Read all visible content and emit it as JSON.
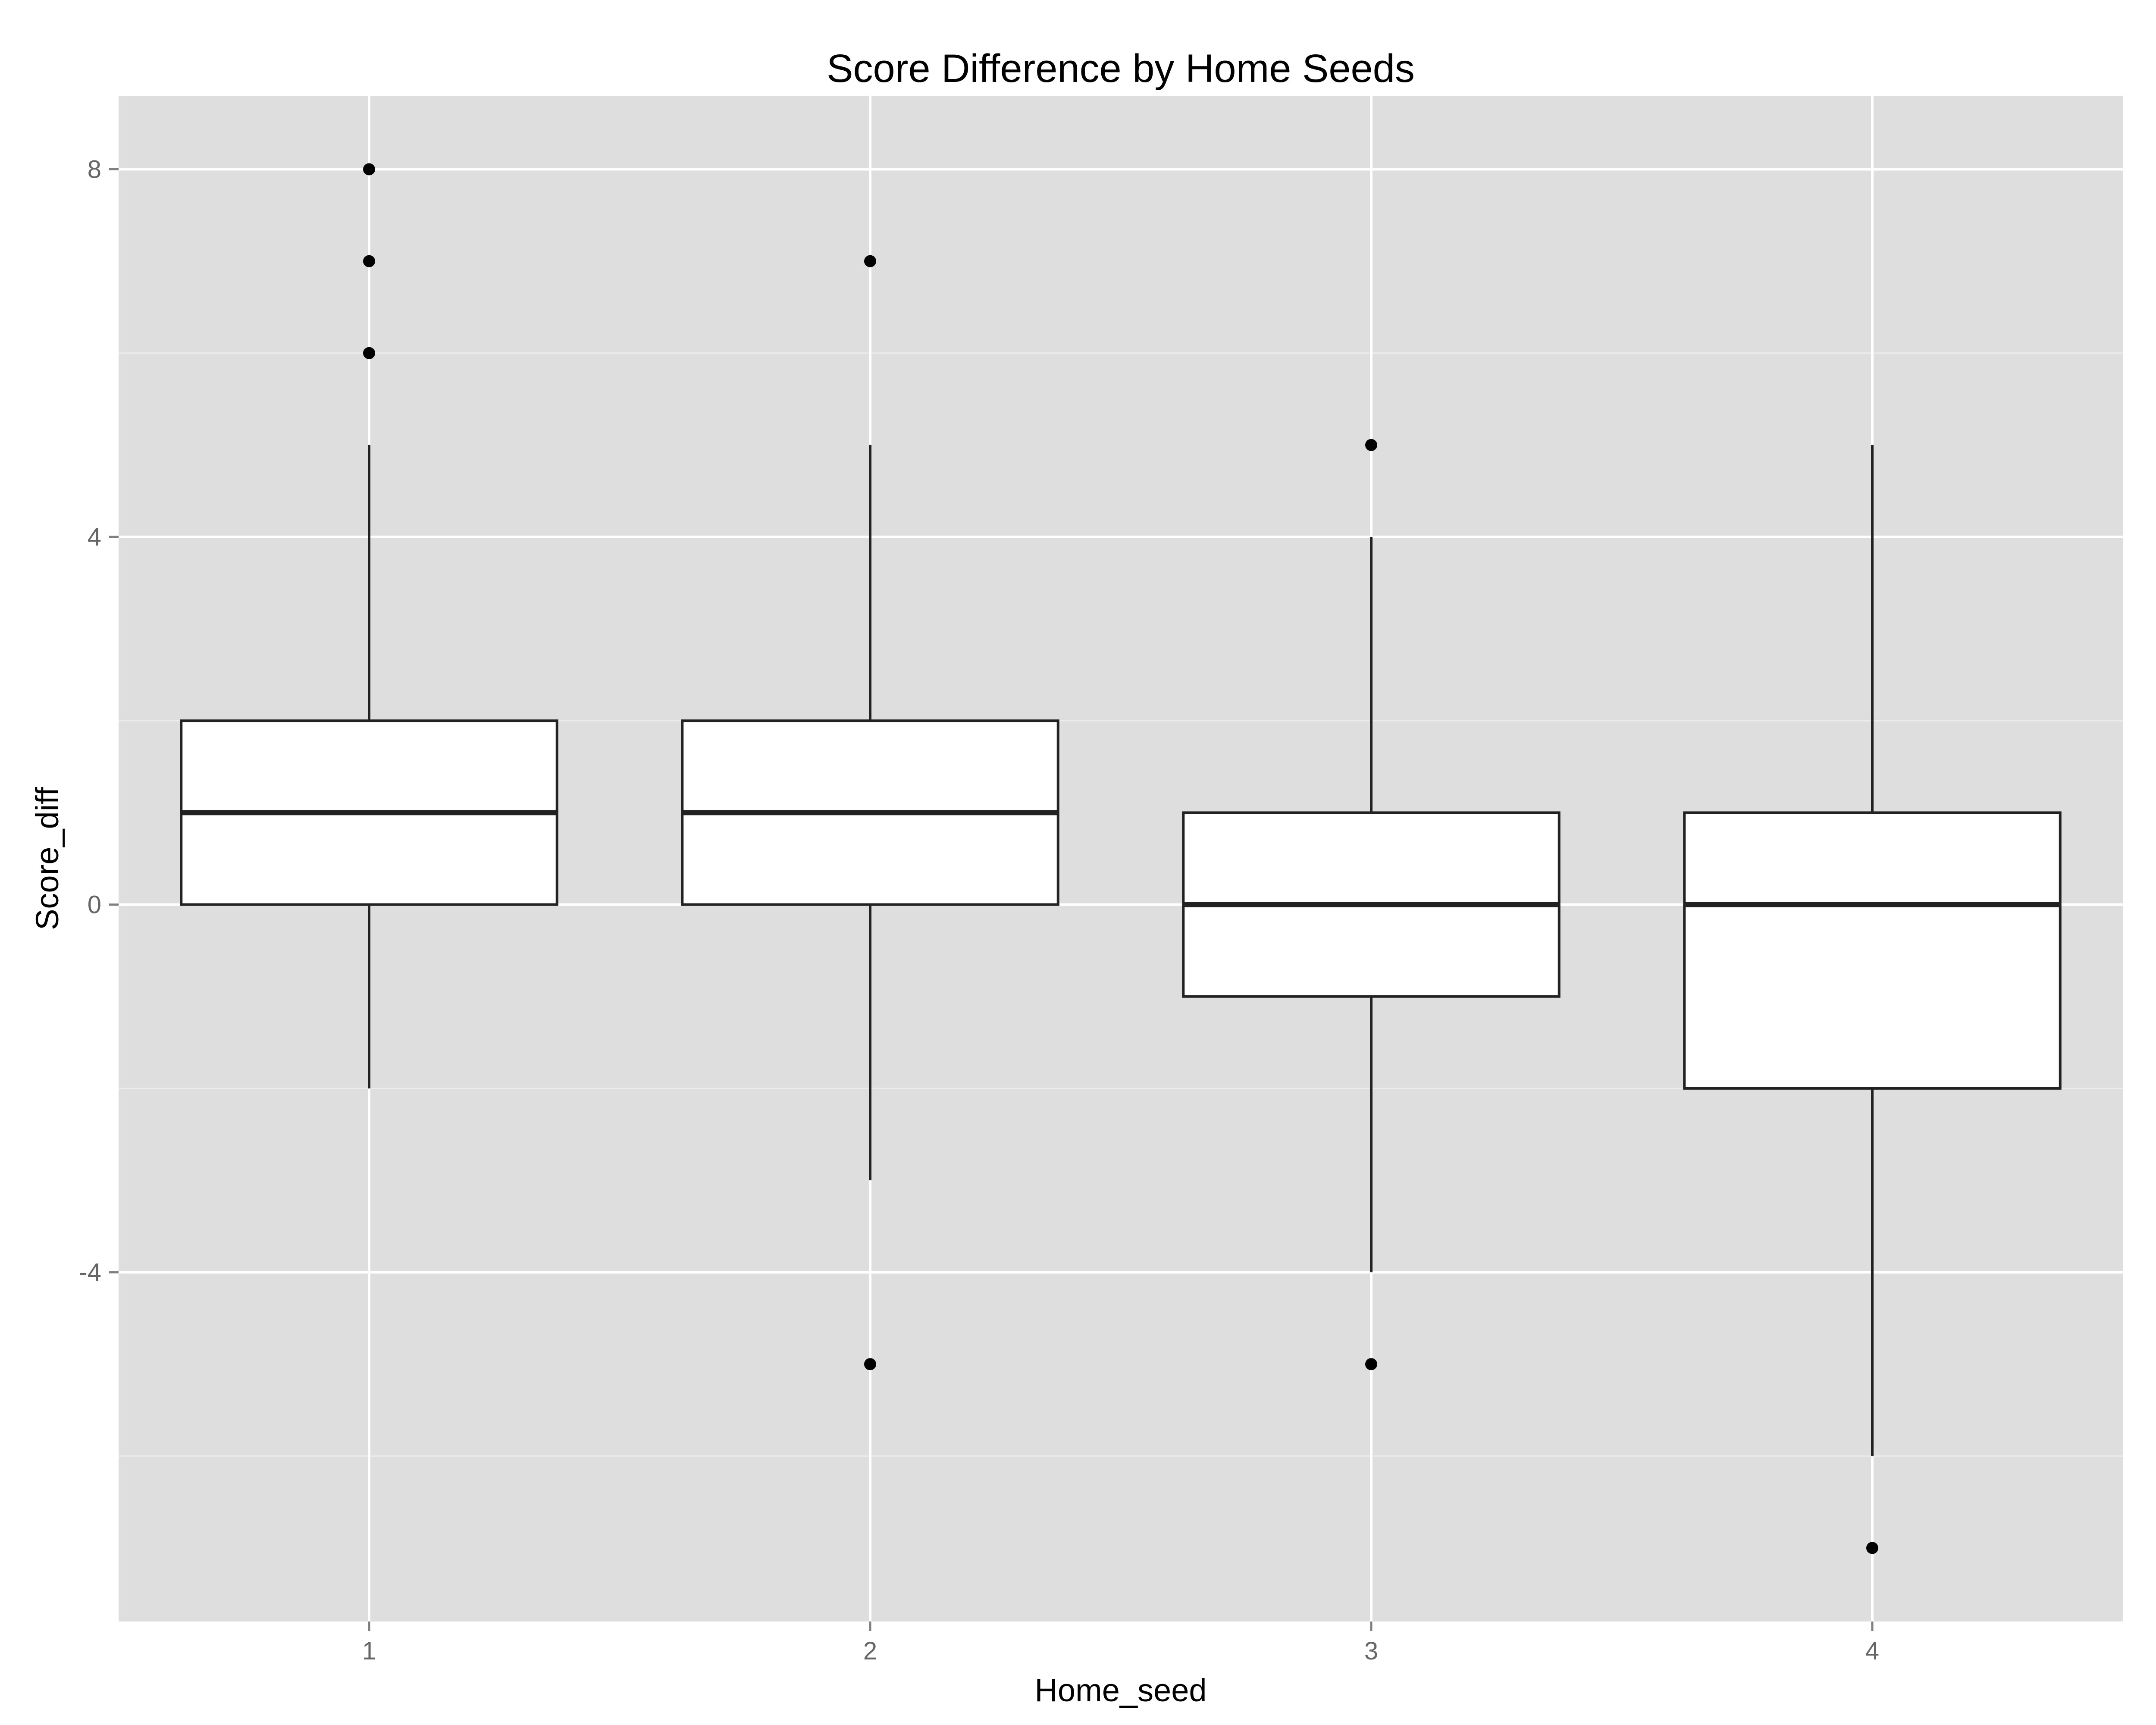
{
  "chart_data": {
    "type": "box",
    "title": "Score Difference by Home Seeds",
    "xlabel": "Home_seed",
    "ylabel": "Score_diff",
    "ylim": [
      -7.8,
      8.8
    ],
    "y_ticks": [
      -4,
      0,
      4,
      8
    ],
    "y_minor_ticks": [
      -6,
      -2,
      2,
      6
    ],
    "grid": true,
    "colors": {
      "panel": "#dedede",
      "grid": "#ffffff",
      "box_fill": "#ffffff",
      "box_line": "#222222",
      "axis_text": "#666666"
    },
    "categories": [
      "1",
      "2",
      "3",
      "4"
    ],
    "boxes": [
      {
        "category": "1",
        "whisker_low": -2,
        "q1": 0,
        "median": 1,
        "q3": 2,
        "whisker_high": 5,
        "outliers": [
          6,
          7,
          8
        ]
      },
      {
        "category": "2",
        "whisker_low": -3,
        "q1": 0,
        "median": 1,
        "q3": 2,
        "whisker_high": 5,
        "outliers": [
          -5,
          7
        ]
      },
      {
        "category": "3",
        "whisker_low": -4,
        "q1": -1,
        "median": 0,
        "q3": 1,
        "whisker_high": 4,
        "outliers": [
          -5,
          5
        ]
      },
      {
        "category": "4",
        "whisker_low": -6,
        "q1": -2,
        "median": 0,
        "q3": 1,
        "whisker_high": 5,
        "outliers": [
          -7
        ]
      }
    ]
  }
}
